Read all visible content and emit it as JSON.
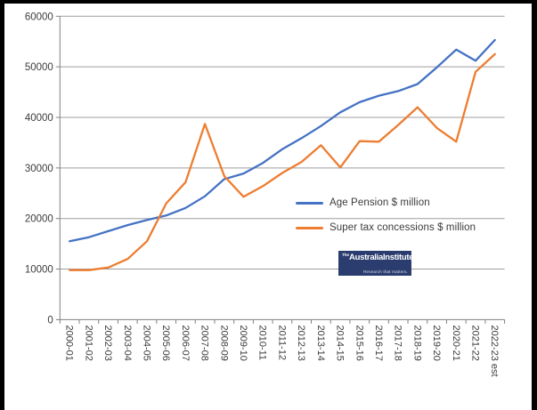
{
  "frame": {
    "color": "#000000"
  },
  "chart_data": {
    "type": "line",
    "title": "",
    "xlabel": "",
    "ylabel": "",
    "categories": [
      "2000-01",
      "2001-02",
      "2002-03",
      "2003-04",
      "2004-05",
      "2005-06",
      "2006-07",
      "2007-08",
      "2008-09",
      "2009-10",
      "2010-11",
      "2011-12",
      "2012-13",
      "2013-14",
      "2014-15",
      "2015-16",
      "2016-17",
      "2017-18",
      "2018-19",
      "2019-20",
      "2020-21",
      "2021-22",
      "2022-23 est"
    ],
    "series": [
      {
        "name": "Age Pension $ million",
        "color": "#4472C4",
        "values": [
          15500,
          16300,
          17500,
          18700,
          19700,
          20600,
          22100,
          24400,
          27800,
          28900,
          31000,
          33700,
          35900,
          38300,
          41000,
          43000,
          44300,
          45200,
          46600,
          49900,
          53400,
          51200,
          55300
        ]
      },
      {
        "name": "Super tax concessions $ million",
        "color": "#ED7D31",
        "values": [
          9800,
          9800,
          10300,
          12000,
          15500,
          23000,
          27200,
          38700,
          28400,
          24300,
          26400,
          29000,
          31200,
          34500,
          30100,
          35300,
          35200,
          38500,
          42000,
          37900,
          35200,
          49000,
          52500
        ]
      }
    ],
    "ylim": [
      0,
      60000
    ],
    "y_ticks": [
      0,
      10000,
      20000,
      30000,
      40000,
      50000,
      60000
    ],
    "y_tick_labels": [
      "0",
      "10000",
      "20000",
      "30000",
      "40000",
      "50000",
      "60000"
    ],
    "grid": true,
    "legend_position": "inside-middle-right",
    "colors": {
      "gridline": "#9d9d9d",
      "axis": "#808080",
      "tick_text": "#3b3b3b"
    }
  },
  "logo": {
    "prefix": "The",
    "title": "AustraliaInstitute",
    "tagline": "Research that matters.",
    "bg": "#2b3d6f",
    "text": "#ffffff"
  }
}
